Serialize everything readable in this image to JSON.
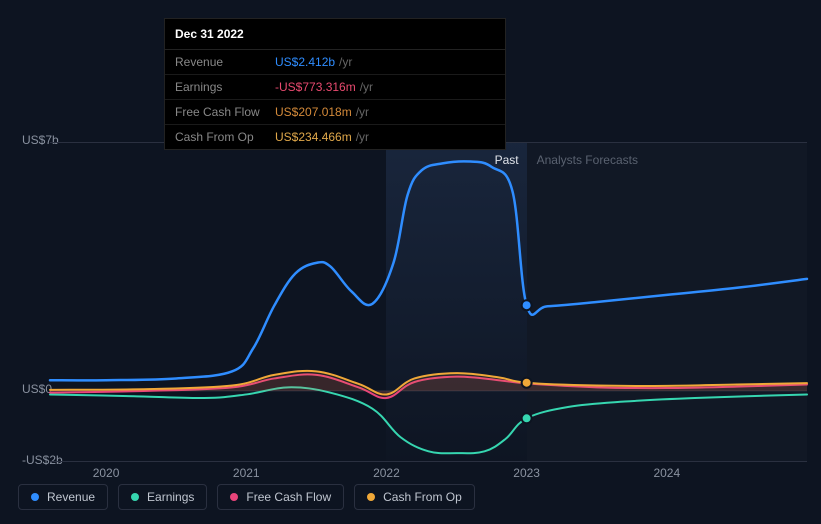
{
  "tooltip": {
    "title": "Dec 31 2022",
    "unit_suffix": "/yr",
    "rows": [
      {
        "label": "Revenue",
        "value": "US$2.412b",
        "color": "#2f8dff"
      },
      {
        "label": "Earnings",
        "value": "-US$773.316m",
        "color": "#e84a6f"
      },
      {
        "label": "Free Cash Flow",
        "value": "US$207.018m",
        "color": "#d48a3a"
      },
      {
        "label": "Cash From Op",
        "value": "US$234.466m",
        "color": "#e0a84a"
      }
    ]
  },
  "chart": {
    "type": "line",
    "background_color": "#0d1421",
    "grid_color": "#2a3040",
    "y_axis": {
      "min": -2,
      "max": 7,
      "unit": "US$_b",
      "ticks": [
        {
          "v": 7,
          "label": "US$7b"
        },
        {
          "v": 0,
          "label": "US$0"
        },
        {
          "v": -2,
          "label": "-US$2b"
        }
      ]
    },
    "x_axis": {
      "min": 2019.6,
      "max": 2025.0,
      "ticks": [
        {
          "v": 2020,
          "label": "2020"
        },
        {
          "v": 2021,
          "label": "2021"
        },
        {
          "v": 2022,
          "label": "2022"
        },
        {
          "v": 2023,
          "label": "2023"
        },
        {
          "v": 2024,
          "label": "2024"
        }
      ]
    },
    "sections": {
      "past_label": "Past",
      "forecast_label": "Analysts Forecasts",
      "divider_x": 2023.0,
      "highlight_start": 2022.0,
      "highlight_end": 2023.0
    },
    "series": [
      {
        "name": "Revenue",
        "color": "#2f8dff",
        "line_width": 2.5,
        "fill_opacity": 0,
        "points": [
          [
            2019.6,
            0.3
          ],
          [
            2020.0,
            0.3
          ],
          [
            2020.5,
            0.35
          ],
          [
            2020.9,
            0.55
          ],
          [
            2021.05,
            1.2
          ],
          [
            2021.2,
            2.4
          ],
          [
            2021.35,
            3.3
          ],
          [
            2021.5,
            3.6
          ],
          [
            2021.6,
            3.5
          ],
          [
            2021.75,
            2.8
          ],
          [
            2021.9,
            2.45
          ],
          [
            2022.05,
            3.6
          ],
          [
            2022.15,
            5.5
          ],
          [
            2022.25,
            6.2
          ],
          [
            2022.4,
            6.4
          ],
          [
            2022.6,
            6.45
          ],
          [
            2022.75,
            6.3
          ],
          [
            2022.9,
            5.6
          ],
          [
            2023.0,
            2.41
          ],
          [
            2023.15,
            2.38
          ],
          [
            2023.5,
            2.5
          ],
          [
            2024.0,
            2.7
          ],
          [
            2024.5,
            2.9
          ],
          [
            2025.0,
            3.15
          ]
        ],
        "marker": {
          "x": 2023.0,
          "y": 2.41
        }
      },
      {
        "name": "Earnings",
        "color": "#36d6b0",
        "line_width": 2,
        "fill_opacity": 0,
        "points": [
          [
            2019.6,
            -0.1
          ],
          [
            2020.2,
            -0.15
          ],
          [
            2020.7,
            -0.2
          ],
          [
            2021.0,
            -0.1
          ],
          [
            2021.3,
            0.1
          ],
          [
            2021.6,
            -0.05
          ],
          [
            2021.9,
            -0.5
          ],
          [
            2022.1,
            -1.3
          ],
          [
            2022.3,
            -1.7
          ],
          [
            2022.5,
            -1.75
          ],
          [
            2022.7,
            -1.7
          ],
          [
            2022.85,
            -1.35
          ],
          [
            2023.0,
            -0.77
          ],
          [
            2023.3,
            -0.45
          ],
          [
            2023.7,
            -0.3
          ],
          [
            2024.2,
            -0.2
          ],
          [
            2025.0,
            -0.1
          ]
        ],
        "marker": {
          "x": 2023.0,
          "y": -0.77
        }
      },
      {
        "name": "Free Cash Flow",
        "color": "#e8447a",
        "line_width": 2,
        "fill_opacity": 0.1,
        "points": [
          [
            2019.6,
            -0.05
          ],
          [
            2020.3,
            0.0
          ],
          [
            2020.9,
            0.1
          ],
          [
            2021.2,
            0.35
          ],
          [
            2021.5,
            0.45
          ],
          [
            2021.8,
            0.1
          ],
          [
            2022.0,
            -0.2
          ],
          [
            2022.2,
            0.25
          ],
          [
            2022.5,
            0.4
          ],
          [
            2022.8,
            0.3
          ],
          [
            2023.0,
            0.21
          ],
          [
            2023.5,
            0.1
          ],
          [
            2024.0,
            0.08
          ],
          [
            2024.5,
            0.12
          ],
          [
            2025.0,
            0.18
          ]
        ],
        "marker": null
      },
      {
        "name": "Cash From Op",
        "color": "#f0a838",
        "line_width": 2,
        "fill_opacity": 0.1,
        "points": [
          [
            2019.6,
            0.03
          ],
          [
            2020.3,
            0.05
          ],
          [
            2020.9,
            0.15
          ],
          [
            2021.2,
            0.45
          ],
          [
            2021.5,
            0.55
          ],
          [
            2021.8,
            0.2
          ],
          [
            2022.0,
            -0.1
          ],
          [
            2022.2,
            0.35
          ],
          [
            2022.5,
            0.5
          ],
          [
            2022.8,
            0.38
          ],
          [
            2023.0,
            0.23
          ],
          [
            2023.5,
            0.15
          ],
          [
            2024.0,
            0.14
          ],
          [
            2024.5,
            0.18
          ],
          [
            2025.0,
            0.22
          ]
        ],
        "marker": {
          "x": 2023.0,
          "y": 0.23
        }
      }
    ],
    "legend": [
      {
        "label": "Revenue",
        "color": "#2f8dff"
      },
      {
        "label": "Earnings",
        "color": "#36d6b0"
      },
      {
        "label": "Free Cash Flow",
        "color": "#e8447a"
      },
      {
        "label": "Cash From Op",
        "color": "#f0a838"
      }
    ]
  }
}
